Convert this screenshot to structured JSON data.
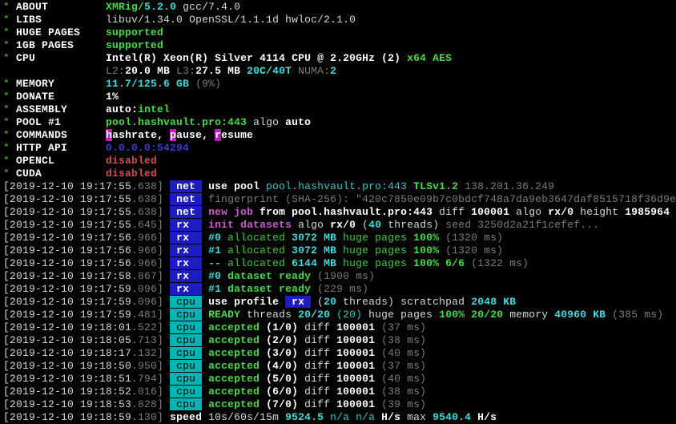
{
  "app": "XMRig terminal output",
  "palette": {
    "white": "#d8d8d8",
    "white_bright": "#ffffff",
    "green": "#3ecc3e",
    "green_bright": "#44dd44",
    "cyan": "#38c8c8",
    "cyan_bright": "#3fdcdc",
    "gray": "#7d7d7d",
    "magenta": "#cc5ccc",
    "red": "#cf5050",
    "blue": "#3c3ccd",
    "tag_blue_bg": "#1c1cc0",
    "tag_cyan_bg": "#00b4b4",
    "key_bg": "#bb1fbb",
    "background": "#000000"
  },
  "terminal": {
    "meta": [
      {
        "label": "ABOUT",
        "segments": [
          {
            "t": "XMRig/",
            "s": "gb"
          },
          {
            "t": "5.2.0",
            "s": "cb"
          },
          {
            "t": " gcc/7.4.0",
            "s": "w"
          }
        ]
      },
      {
        "label": "LIBS",
        "segments": [
          {
            "t": "libuv/1.34.0 OpenSSL/1.1.1d hwloc/2.1.0",
            "s": "w"
          }
        ]
      },
      {
        "label": "HUGE PAGES",
        "segments": [
          {
            "t": "supported",
            "s": "gb"
          }
        ]
      },
      {
        "label": "1GB PAGES",
        "segments": [
          {
            "t": "supported",
            "s": "gb"
          }
        ]
      },
      {
        "label": "CPU",
        "segments": [
          {
            "t": "Intel(R) Xeon(R) Silver 4114 CPU @ 2.20GHz (2) ",
            "s": "wb"
          },
          {
            "t": "x64 AES",
            "s": "gb"
          }
        ]
      },
      {
        "label": "",
        "segments": [
          {
            "t": "L2:",
            "s": "gray"
          },
          {
            "t": "20.0 MB ",
            "s": "wb"
          },
          {
            "t": "L3:",
            "s": "gray"
          },
          {
            "t": "27.5 MB ",
            "s": "wb"
          },
          {
            "t": "20C/40T ",
            "s": "cb"
          },
          {
            "t": "NUMA:",
            "s": "gray"
          },
          {
            "t": "2",
            "s": "cb"
          }
        ]
      },
      {
        "label": "MEMORY",
        "segments": [
          {
            "t": "11.7/125.6 GB ",
            "s": "cb"
          },
          {
            "t": "(9%)",
            "s": "gray"
          }
        ]
      },
      {
        "label": "DONATE",
        "segments": [
          {
            "t": "1%",
            "s": "wb"
          }
        ]
      },
      {
        "label": "ASSEMBLY",
        "segments": [
          {
            "t": "auto:",
            "s": "wb"
          },
          {
            "t": "intel",
            "s": "gb"
          }
        ]
      },
      {
        "label": "POOL #1",
        "segments": [
          {
            "t": "pool.hashvault.pro:443",
            "s": "gb"
          },
          {
            "t": " algo ",
            "s": "w"
          },
          {
            "t": "auto",
            "s": "wb"
          }
        ]
      },
      {
        "label": "COMMANDS",
        "segments": [
          {
            "t": "h",
            "s": "key"
          },
          {
            "t": "ashrate, ",
            "s": "wb"
          },
          {
            "t": "p",
            "s": "key"
          },
          {
            "t": "ause, ",
            "s": "wb"
          },
          {
            "t": "r",
            "s": "key"
          },
          {
            "t": "esume",
            "s": "wb"
          }
        ]
      },
      {
        "label": "HTTP API",
        "segments": [
          {
            "t": "0.0.0.0:54294",
            "s": "blue"
          }
        ]
      },
      {
        "label": "OPENCL",
        "segments": [
          {
            "t": "disabled",
            "s": "red"
          }
        ]
      },
      {
        "label": "CUDA",
        "segments": [
          {
            "t": "disabled",
            "s": "red"
          }
        ]
      }
    ],
    "log": [
      {
        "time": "2019-12-10 19:17:55",
        "ms": "638",
        "tag": {
          "text": " net ",
          "style": "tag-blue"
        },
        "segments": [
          {
            "t": "use pool ",
            "s": "wb"
          },
          {
            "t": "pool.hashvault.pro:443 ",
            "s": "c"
          },
          {
            "t": "TLSv1.2 ",
            "s": "gb"
          },
          {
            "t": "138.201.36.249",
            "s": "gray"
          }
        ]
      },
      {
        "time": "2019-12-10 19:17:55",
        "ms": "638",
        "tag": {
          "text": " net ",
          "style": "tag-blue"
        },
        "segments": [
          {
            "t": "fingerprint (SHA-256): \"420c7850e09b7c0bdcf748a7da9eb3647daf8515718f36d9e",
            "s": "gray"
          }
        ]
      },
      {
        "time": "2019-12-10 19:17:55",
        "ms": "638",
        "tag": {
          "text": " net ",
          "style": "tag-blue"
        },
        "segments": [
          {
            "t": "new job",
            "s": "mag"
          },
          {
            "t": " from ",
            "s": "wb"
          },
          {
            "t": "pool.hashvault.pro:443",
            "s": "wb"
          },
          {
            "t": " diff ",
            "s": "w"
          },
          {
            "t": "100001",
            "s": "wb"
          },
          {
            "t": " algo ",
            "s": "w"
          },
          {
            "t": "rx/0",
            "s": "wb"
          },
          {
            "t": " height ",
            "s": "w"
          },
          {
            "t": "1985964",
            "s": "wb"
          }
        ]
      },
      {
        "time": "2019-12-10 19:17:55",
        "ms": "645",
        "tag": {
          "text": " rx  ",
          "style": "tag-blue"
        },
        "segments": [
          {
            "t": "init datasets",
            "s": "mag"
          },
          {
            "t": " algo ",
            "s": "w"
          },
          {
            "t": "rx/0 ",
            "s": "wb"
          },
          {
            "t": "(",
            "s": "w"
          },
          {
            "t": "40",
            "s": "cb"
          },
          {
            "t": " threads)",
            "s": "w"
          },
          {
            "t": " seed 3250d2a21f1cefef...",
            "s": "gray"
          }
        ]
      },
      {
        "time": "2019-12-10 19:17:56",
        "ms": "966",
        "tag": {
          "text": " rx  ",
          "style": "tag-blue"
        },
        "segments": [
          {
            "t": "#0",
            "s": "cb"
          },
          {
            "t": " allocated ",
            "s": "g"
          },
          {
            "t": "3072 MB",
            "s": "cb"
          },
          {
            "t": " huge pages ",
            "s": "g"
          },
          {
            "t": "100%",
            "s": "gb"
          },
          {
            "t": " (1320 ms)",
            "s": "gray"
          }
        ]
      },
      {
        "time": "2019-12-10 19:17:56",
        "ms": "966",
        "tag": {
          "text": " rx  ",
          "style": "tag-blue"
        },
        "segments": [
          {
            "t": "#1",
            "s": "cb"
          },
          {
            "t": " allocated ",
            "s": "g"
          },
          {
            "t": "3072 MB",
            "s": "cb"
          },
          {
            "t": " huge pages ",
            "s": "g"
          },
          {
            "t": "100%",
            "s": "gb"
          },
          {
            "t": " (1320 ms)",
            "s": "gray"
          }
        ]
      },
      {
        "time": "2019-12-10 19:17:56",
        "ms": "966",
        "tag": {
          "text": " rx  ",
          "style": "tag-blue"
        },
        "segments": [
          {
            "t": "--",
            "s": "cb"
          },
          {
            "t": " allocated ",
            "s": "g"
          },
          {
            "t": "6144 MB",
            "s": "cb"
          },
          {
            "t": " huge pages ",
            "s": "g"
          },
          {
            "t": "100% 6/6",
            "s": "gb"
          },
          {
            "t": " (1322 ms)",
            "s": "gray"
          }
        ]
      },
      {
        "time": "2019-12-10 19:17:58",
        "ms": "867",
        "tag": {
          "text": " rx  ",
          "style": "tag-blue"
        },
        "segments": [
          {
            "t": "#0",
            "s": "cb"
          },
          {
            "t": " dataset ready ",
            "s": "gb"
          },
          {
            "t": "(1900 ms)",
            "s": "gray"
          }
        ]
      },
      {
        "time": "2019-12-10 19:17:59",
        "ms": "096",
        "tag": {
          "text": " rx  ",
          "style": "tag-blue"
        },
        "segments": [
          {
            "t": "#1",
            "s": "cb"
          },
          {
            "t": " dataset ready ",
            "s": "gb"
          },
          {
            "t": "(229 ms)",
            "s": "gray"
          }
        ]
      },
      {
        "time": "2019-12-10 19:17:59",
        "ms": "096",
        "tag": {
          "text": " cpu ",
          "style": "tag-cyan"
        },
        "segments": [
          {
            "t": "use profile ",
            "s": "wb"
          },
          {
            "t": " rx ",
            "s": "tag-blue"
          },
          {
            "t": " (",
            "s": "w"
          },
          {
            "t": "20",
            "s": "cb"
          },
          {
            "t": " threads) scratchpad ",
            "s": "w"
          },
          {
            "t": "2048 KB",
            "s": "cb"
          }
        ]
      },
      {
        "time": "2019-12-10 19:17:59",
        "ms": "481",
        "tag": {
          "text": " cpu ",
          "style": "tag-cyan"
        },
        "segments": [
          {
            "t": "READY",
            "s": "gb"
          },
          {
            "t": " threads ",
            "s": "w"
          },
          {
            "t": "20/20",
            "s": "cb"
          },
          {
            "t": " ",
            "s": "w"
          },
          {
            "t": "(20)",
            "s": "c"
          },
          {
            "t": " huge pages ",
            "s": "w"
          },
          {
            "t": "100% 20/20",
            "s": "gb"
          },
          {
            "t": " memory ",
            "s": "w"
          },
          {
            "t": "40960 KB",
            "s": "cb"
          },
          {
            "t": " (385 ms)",
            "s": "gray"
          }
        ]
      },
      {
        "time": "2019-12-10 19:18:01",
        "ms": "522",
        "tag": {
          "text": " cpu ",
          "style": "tag-cyan"
        },
        "segments": [
          {
            "t": "accepted",
            "s": "gb"
          },
          {
            "t": " (1/0)",
            "s": "wb"
          },
          {
            "t": " diff ",
            "s": "w"
          },
          {
            "t": "100001",
            "s": "wb"
          },
          {
            "t": " (37 ms)",
            "s": "gray"
          }
        ]
      },
      {
        "time": "2019-12-10 19:18:05",
        "ms": "713",
        "tag": {
          "text": " cpu ",
          "style": "tag-cyan"
        },
        "segments": [
          {
            "t": "accepted",
            "s": "gb"
          },
          {
            "t": " (2/0)",
            "s": "wb"
          },
          {
            "t": " diff ",
            "s": "w"
          },
          {
            "t": "100001",
            "s": "wb"
          },
          {
            "t": " (38 ms)",
            "s": "gray"
          }
        ]
      },
      {
        "time": "2019-12-10 19:18:17",
        "ms": "132",
        "tag": {
          "text": " cpu ",
          "style": "tag-cyan"
        },
        "segments": [
          {
            "t": "accepted",
            "s": "gb"
          },
          {
            "t": " (3/0)",
            "s": "wb"
          },
          {
            "t": " diff ",
            "s": "w"
          },
          {
            "t": "100001",
            "s": "wb"
          },
          {
            "t": " (40 ms)",
            "s": "gray"
          }
        ]
      },
      {
        "time": "2019-12-10 19:18:50",
        "ms": "950",
        "tag": {
          "text": " cpu ",
          "style": "tag-cyan"
        },
        "segments": [
          {
            "t": "accepted",
            "s": "gb"
          },
          {
            "t": " (4/0)",
            "s": "wb"
          },
          {
            "t": " diff ",
            "s": "w"
          },
          {
            "t": "100001",
            "s": "wb"
          },
          {
            "t": " (37 ms)",
            "s": "gray"
          }
        ]
      },
      {
        "time": "2019-12-10 19:18:51",
        "ms": "794",
        "tag": {
          "text": " cpu ",
          "style": "tag-cyan"
        },
        "segments": [
          {
            "t": "accepted",
            "s": "gb"
          },
          {
            "t": " (5/0)",
            "s": "wb"
          },
          {
            "t": " diff ",
            "s": "w"
          },
          {
            "t": "100001",
            "s": "wb"
          },
          {
            "t": " (40 ms)",
            "s": "gray"
          }
        ]
      },
      {
        "time": "2019-12-10 19:18:52",
        "ms": "016",
        "tag": {
          "text": " cpu ",
          "style": "tag-cyan"
        },
        "segments": [
          {
            "t": "accepted",
            "s": "gb"
          },
          {
            "t": " (6/0)",
            "s": "wb"
          },
          {
            "t": " diff ",
            "s": "w"
          },
          {
            "t": "100001",
            "s": "wb"
          },
          {
            "t": " (38 ms)",
            "s": "gray"
          }
        ]
      },
      {
        "time": "2019-12-10 19:18:53",
        "ms": "828",
        "tag": {
          "text": " cpu ",
          "style": "tag-cyan"
        },
        "segments": [
          {
            "t": "accepted",
            "s": "gb"
          },
          {
            "t": " (7/0)",
            "s": "wb"
          },
          {
            "t": " diff ",
            "s": "w"
          },
          {
            "t": "100001",
            "s": "wb"
          },
          {
            "t": " (39 ms)",
            "s": "gray"
          }
        ]
      },
      {
        "time": "2019-12-10 19:18:59",
        "ms": "130",
        "tag": null,
        "segments": [
          {
            "t": "speed ",
            "s": "wb"
          },
          {
            "t": "10s/60s/15m ",
            "s": "w"
          },
          {
            "t": "9524.5",
            "s": "cb"
          },
          {
            "t": " n/a n/a ",
            "s": "c"
          },
          {
            "t": "H/s",
            "s": "wb"
          },
          {
            "t": " max ",
            "s": "w"
          },
          {
            "t": "9540.4",
            "s": "cb"
          },
          {
            "t": " H/s",
            "s": "wb"
          }
        ]
      }
    ]
  }
}
